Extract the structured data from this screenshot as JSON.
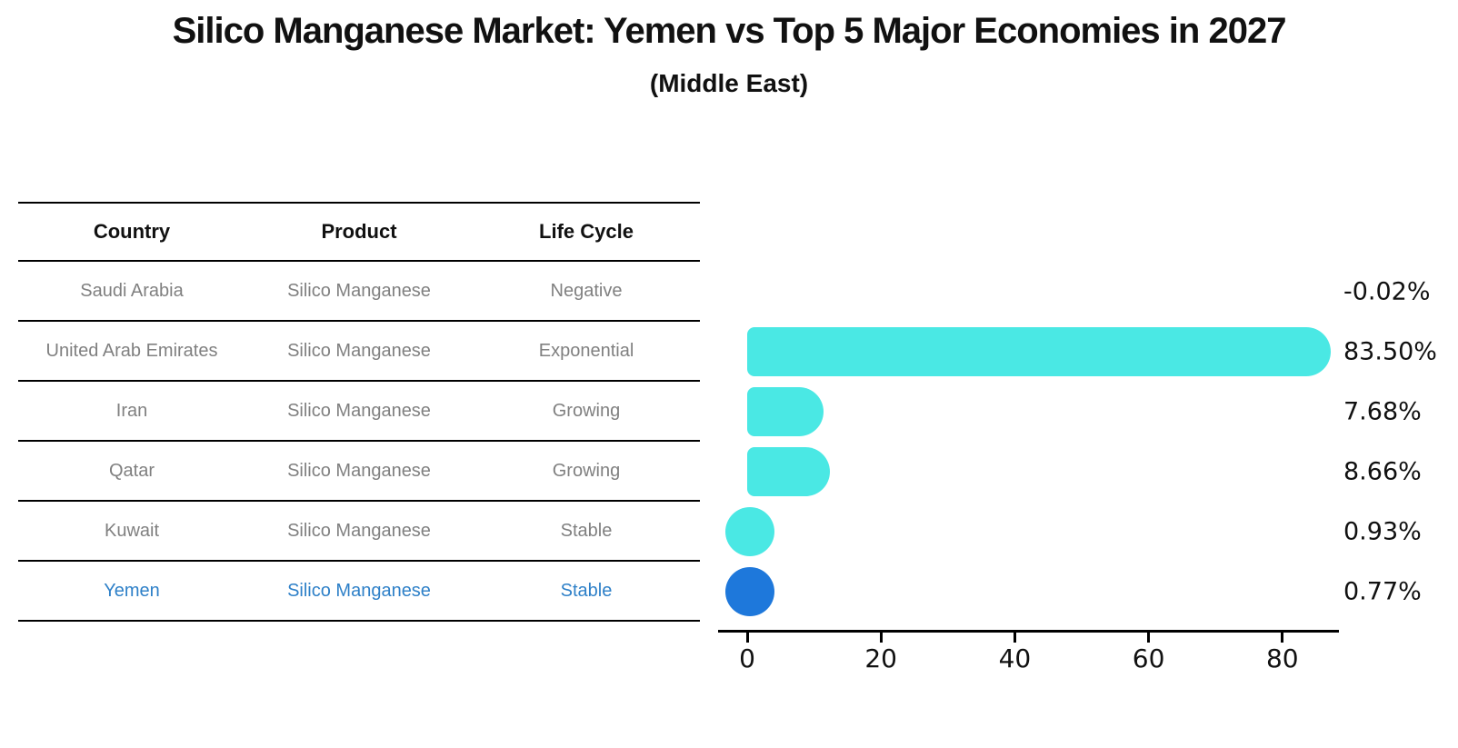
{
  "title": "Silico Manganese Market: Yemen vs Top 5 Major Economies in 2027",
  "subtitle": "(Middle East)",
  "table": {
    "headers": [
      "Country",
      "Product",
      "Life Cycle"
    ],
    "rows": [
      {
        "country": "Saudi Arabia",
        "product": "Silico Manganese",
        "life_cycle": "Negative",
        "highlight": false
      },
      {
        "country": "United Arab Emirates",
        "product": "Silico Manganese",
        "life_cycle": "Exponential",
        "highlight": false
      },
      {
        "country": "Iran",
        "product": "Silico Manganese",
        "life_cycle": "Growing",
        "highlight": false
      },
      {
        "country": "Qatar",
        "product": "Silico Manganese",
        "life_cycle": "Growing",
        "highlight": false
      },
      {
        "country": "Kuwait",
        "product": "Silico Manganese",
        "life_cycle": "Stable",
        "highlight": false
      },
      {
        "country": "Yemen",
        "product": "Silico Manganese",
        "life_cycle": "Stable",
        "highlight": true
      }
    ]
  },
  "chart_data": {
    "type": "bar",
    "orientation": "horizontal",
    "title": "Silico Manganese Market: Yemen vs Top 5 Major Economies in 2027 (Middle East)",
    "categories": [
      "Saudi Arabia",
      "United Arab Emirates",
      "Iran",
      "Qatar",
      "Kuwait",
      "Yemen"
    ],
    "values": [
      -0.02,
      83.5,
      7.68,
      8.66,
      0.93,
      0.77
    ],
    "value_labels": [
      "-0.02%",
      "83.50%",
      "7.68%",
      "8.66%",
      "0.93%",
      "0.77%"
    ],
    "x_ticks": [
      0,
      20,
      40,
      60,
      80
    ],
    "xlim": [
      -4.3,
      88.5
    ],
    "grid": false,
    "legend": "none",
    "xlabel": "",
    "ylabel": "",
    "unit": "percent",
    "bar_color": "#4ae8e4",
    "highlight_color": "#1e78db",
    "highlight_index": 5
  },
  "colors": {
    "bar_cyan": "#4ae8e4",
    "bar_blue": "#1e78db",
    "highlight_row_text": "#2e80c8",
    "row_text": "#808080",
    "heading_text": "#111111",
    "axis": "#000000",
    "background": "#ffffff"
  }
}
